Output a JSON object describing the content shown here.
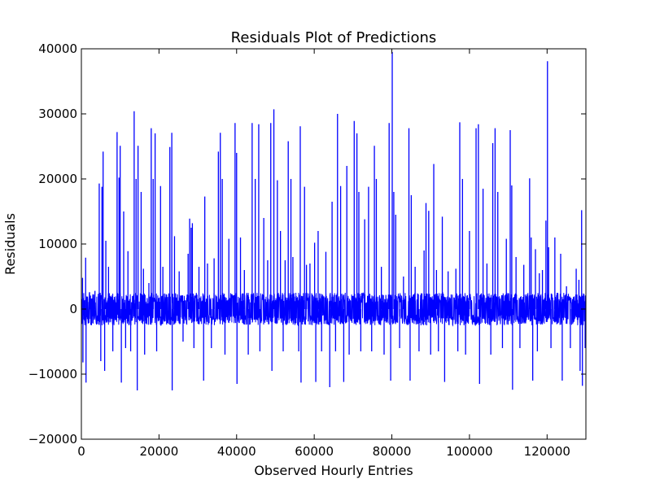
{
  "chart_data": {
    "type": "line",
    "title": "Residuals Plot of Predictions",
    "xlabel": "Observed Hourly Entries",
    "ylabel": "Residuals",
    "xlim": [
      0,
      130000
    ],
    "ylim": [
      -20000,
      40000
    ],
    "xticks": [
      0,
      20000,
      40000,
      60000,
      80000,
      100000,
      120000
    ],
    "yticks": [
      -20000,
      -10000,
      0,
      10000,
      20000,
      30000,
      40000
    ],
    "xtick_labels": [
      "0",
      "20000",
      "40000",
      "60000",
      "80000",
      "100000",
      "120000"
    ],
    "ytick_labels": [
      "−20000",
      "−10000",
      "0",
      "10000",
      "20000",
      "30000",
      "40000"
    ],
    "grid": false,
    "series": [
      {
        "color": "#0000ff",
        "baseline_band": [
          -2500,
          2500
        ],
        "spikes": [
          {
            "x": 300,
            "y": 4800
          },
          {
            "x": 400,
            "y": -8200
          },
          {
            "x": 1100,
            "y": 7900
          },
          {
            "x": 1200,
            "y": -11300
          },
          {
            "x": 2100,
            "y": 2600
          },
          {
            "x": 3500,
            "y": 2800
          },
          {
            "x": 4600,
            "y": 19300
          },
          {
            "x": 5000,
            "y": -8000
          },
          {
            "x": 5300,
            "y": 18800
          },
          {
            "x": 5600,
            "y": 24200
          },
          {
            "x": 6000,
            "y": -9500
          },
          {
            "x": 6300,
            "y": 10500
          },
          {
            "x": 7000,
            "y": 6500
          },
          {
            "x": 8100,
            "y": -6500
          },
          {
            "x": 9200,
            "y": 27200
          },
          {
            "x": 9700,
            "y": 20200
          },
          {
            "x": 10000,
            "y": 25100
          },
          {
            "x": 10300,
            "y": -11300
          },
          {
            "x": 10900,
            "y": 15000
          },
          {
            "x": 11400,
            "y": -6000
          },
          {
            "x": 12000,
            "y": 8900
          },
          {
            "x": 12700,
            "y": -6500
          },
          {
            "x": 13600,
            "y": 30400
          },
          {
            "x": 14100,
            "y": 20000
          },
          {
            "x": 14400,
            "y": -12500
          },
          {
            "x": 14600,
            "y": 25100
          },
          {
            "x": 15400,
            "y": 18000
          },
          {
            "x": 16000,
            "y": 6200
          },
          {
            "x": 16300,
            "y": -7000
          },
          {
            "x": 17400,
            "y": 4000
          },
          {
            "x": 18000,
            "y": 27800
          },
          {
            "x": 18500,
            "y": 20000
          },
          {
            "x": 19000,
            "y": 27000
          },
          {
            "x": 19400,
            "y": -6500
          },
          {
            "x": 20400,
            "y": 18900
          },
          {
            "x": 21000,
            "y": 6500
          },
          {
            "x": 22800,
            "y": 24900
          },
          {
            "x": 23300,
            "y": 27100
          },
          {
            "x": 23400,
            "y": -12500
          },
          {
            "x": 24000,
            "y": 11200
          },
          {
            "x": 25200,
            "y": 5800
          },
          {
            "x": 26200,
            "y": -5000
          },
          {
            "x": 27500,
            "y": 8500
          },
          {
            "x": 27900,
            "y": 13900
          },
          {
            "x": 28300,
            "y": 12500
          },
          {
            "x": 28600,
            "y": 13200
          },
          {
            "x": 29000,
            "y": -6000
          },
          {
            "x": 30300,
            "y": 6500
          },
          {
            "x": 31500,
            "y": -11000
          },
          {
            "x": 31800,
            "y": 17300
          },
          {
            "x": 32500,
            "y": 7000
          },
          {
            "x": 33500,
            "y": -6000
          },
          {
            "x": 34200,
            "y": 7800
          },
          {
            "x": 35300,
            "y": 24200
          },
          {
            "x": 35800,
            "y": 27100
          },
          {
            "x": 36300,
            "y": 20000
          },
          {
            "x": 37000,
            "y": -7000
          },
          {
            "x": 38000,
            "y": 10800
          },
          {
            "x": 39600,
            "y": 28600
          },
          {
            "x": 40000,
            "y": 24000
          },
          {
            "x": 40100,
            "y": -11500
          },
          {
            "x": 41000,
            "y": 11000
          },
          {
            "x": 42000,
            "y": 6000
          },
          {
            "x": 43000,
            "y": -7000
          },
          {
            "x": 44000,
            "y": 28600
          },
          {
            "x": 44800,
            "y": 20000
          },
          {
            "x": 45700,
            "y": 28400
          },
          {
            "x": 46000,
            "y": -6500
          },
          {
            "x": 47000,
            "y": 14000
          },
          {
            "x": 48000,
            "y": 7500
          },
          {
            "x": 48800,
            "y": 28600
          },
          {
            "x": 49100,
            "y": -9500
          },
          {
            "x": 49600,
            "y": 30700
          },
          {
            "x": 50500,
            "y": 19800
          },
          {
            "x": 51300,
            "y": 12000
          },
          {
            "x": 52000,
            "y": -6500
          },
          {
            "x": 52500,
            "y": 7500
          },
          {
            "x": 53300,
            "y": 25800
          },
          {
            "x": 54000,
            "y": 20000
          },
          {
            "x": 54500,
            "y": 8000
          },
          {
            "x": 56000,
            "y": -6500
          },
          {
            "x": 56400,
            "y": 28100
          },
          {
            "x": 56600,
            "y": -11300
          },
          {
            "x": 57500,
            "y": 18800
          },
          {
            "x": 58000,
            "y": 6800
          },
          {
            "x": 58900,
            "y": 7000
          },
          {
            "x": 60100,
            "y": 10200
          },
          {
            "x": 60400,
            "y": -11200
          },
          {
            "x": 61000,
            "y": 12000
          },
          {
            "x": 61900,
            "y": -6500
          },
          {
            "x": 63000,
            "y": 8800
          },
          {
            "x": 64000,
            "y": -12000
          },
          {
            "x": 64600,
            "y": 16500
          },
          {
            "x": 65500,
            "y": -6500
          },
          {
            "x": 66000,
            "y": 30000
          },
          {
            "x": 66800,
            "y": 18900
          },
          {
            "x": 67600,
            "y": -11200
          },
          {
            "x": 68400,
            "y": 22000
          },
          {
            "x": 69000,
            "y": -7000
          },
          {
            "x": 70300,
            "y": 28900
          },
          {
            "x": 71000,
            "y": 27000
          },
          {
            "x": 71500,
            "y": 18000
          },
          {
            "x": 72000,
            "y": -6500
          },
          {
            "x": 73000,
            "y": 13800
          },
          {
            "x": 74000,
            "y": 18800
          },
          {
            "x": 74800,
            "y": -6500
          },
          {
            "x": 75500,
            "y": 25100
          },
          {
            "x": 76000,
            "y": 20000
          },
          {
            "x": 77300,
            "y": 6500
          },
          {
            "x": 78000,
            "y": -7000
          },
          {
            "x": 79300,
            "y": 28600
          },
          {
            "x": 79700,
            "y": -11000
          },
          {
            "x": 80100,
            "y": 39500
          },
          {
            "x": 80500,
            "y": 18000
          },
          {
            "x": 81000,
            "y": 14500
          },
          {
            "x": 82000,
            "y": -6000
          },
          {
            "x": 83000,
            "y": 5000
          },
          {
            "x": 84400,
            "y": 27800
          },
          {
            "x": 84700,
            "y": -11000
          },
          {
            "x": 85000,
            "y": 17500
          },
          {
            "x": 86000,
            "y": 6500
          },
          {
            "x": 87000,
            "y": -6500
          },
          {
            "x": 88300,
            "y": 9000
          },
          {
            "x": 88800,
            "y": 16300
          },
          {
            "x": 89500,
            "y": 15100
          },
          {
            "x": 90000,
            "y": -7000
          },
          {
            "x": 90800,
            "y": 22300
          },
          {
            "x": 91500,
            "y": 6000
          },
          {
            "x": 92000,
            "y": -6500
          },
          {
            "x": 93000,
            "y": 14200
          },
          {
            "x": 93600,
            "y": -11200
          },
          {
            "x": 94500,
            "y": 5800
          },
          {
            "x": 96500,
            "y": 6200
          },
          {
            "x": 97000,
            "y": -6500
          },
          {
            "x": 97500,
            "y": 28700
          },
          {
            "x": 98200,
            "y": 20000
          },
          {
            "x": 99000,
            "y": -7000
          },
          {
            "x": 100000,
            "y": 12000
          },
          {
            "x": 101700,
            "y": 27800
          },
          {
            "x": 102300,
            "y": 28400
          },
          {
            "x": 102600,
            "y": -11500
          },
          {
            "x": 103500,
            "y": 18500
          },
          {
            "x": 104500,
            "y": 7000
          },
          {
            "x": 105500,
            "y": -7000
          },
          {
            "x": 106000,
            "y": 25500
          },
          {
            "x": 106600,
            "y": 27800
          },
          {
            "x": 107300,
            "y": 18000
          },
          {
            "x": 108500,
            "y": -6000
          },
          {
            "x": 109500,
            "y": 10800
          },
          {
            "x": 110500,
            "y": 27500
          },
          {
            "x": 110900,
            "y": 19000
          },
          {
            "x": 111100,
            "y": -12400
          },
          {
            "x": 112000,
            "y": 8000
          },
          {
            "x": 113000,
            "y": -6000
          },
          {
            "x": 114000,
            "y": 6800
          },
          {
            "x": 115500,
            "y": 20100
          },
          {
            "x": 115900,
            "y": 11000
          },
          {
            "x": 116300,
            "y": -11000
          },
          {
            "x": 117000,
            "y": 9200
          },
          {
            "x": 117500,
            "y": -6500
          },
          {
            "x": 118000,
            "y": 5500
          },
          {
            "x": 118800,
            "y": 6000
          },
          {
            "x": 119700,
            "y": 13600
          },
          {
            "x": 120100,
            "y": 38100
          },
          {
            "x": 120400,
            "y": 9500
          },
          {
            "x": 121000,
            "y": -6000
          },
          {
            "x": 122000,
            "y": 11000
          },
          {
            "x": 123500,
            "y": 8500
          },
          {
            "x": 123900,
            "y": -11000
          },
          {
            "x": 125000,
            "y": 3500
          },
          {
            "x": 126000,
            "y": -6000
          },
          {
            "x": 127500,
            "y": 6200
          },
          {
            "x": 128200,
            "y": 4500
          },
          {
            "x": 128500,
            "y": -9500
          },
          {
            "x": 128900,
            "y": 15200
          },
          {
            "x": 129100,
            "y": -11800
          },
          {
            "x": 129500,
            "y": 2000
          },
          {
            "x": 129800,
            "y": -6000
          }
        ]
      }
    ]
  }
}
